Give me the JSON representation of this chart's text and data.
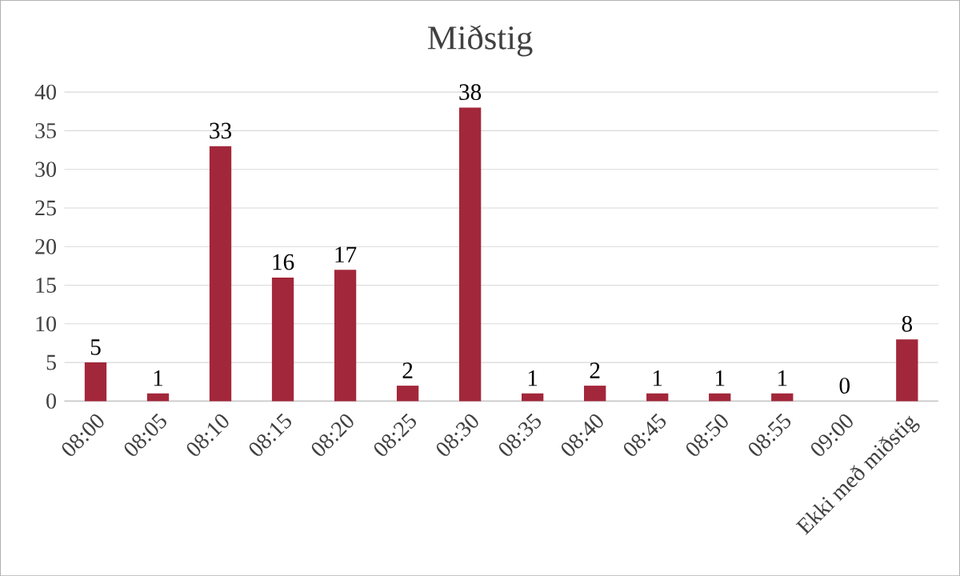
{
  "chart_data": {
    "type": "bar",
    "title": "Miðstig",
    "categories": [
      "08:00",
      "08:05",
      "08:10",
      "08:15",
      "08:20",
      "08:25",
      "08:30",
      "08:35",
      "08:40",
      "08:45",
      "08:50",
      "08:55",
      "09:00",
      "Ekki með miðstig"
    ],
    "values": [
      5,
      1,
      33,
      16,
      17,
      2,
      38,
      1,
      2,
      1,
      1,
      1,
      0,
      8
    ],
    "color": "#a3273a",
    "ylim": [
      0,
      40
    ],
    "yticks": [
      0,
      5,
      10,
      15,
      20,
      25,
      30,
      35,
      40
    ],
    "grid": "y",
    "data_labels": true
  }
}
